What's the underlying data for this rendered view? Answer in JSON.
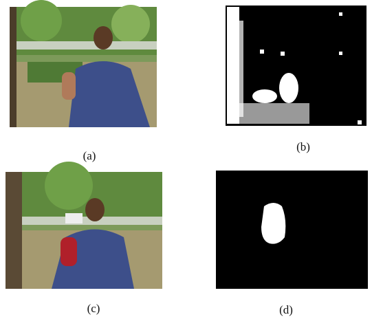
{
  "panels": [
    {
      "caption": "(a)"
    },
    {
      "caption": "(b)"
    },
    {
      "caption": "(c)"
    },
    {
      "caption": "(d)"
    }
  ]
}
